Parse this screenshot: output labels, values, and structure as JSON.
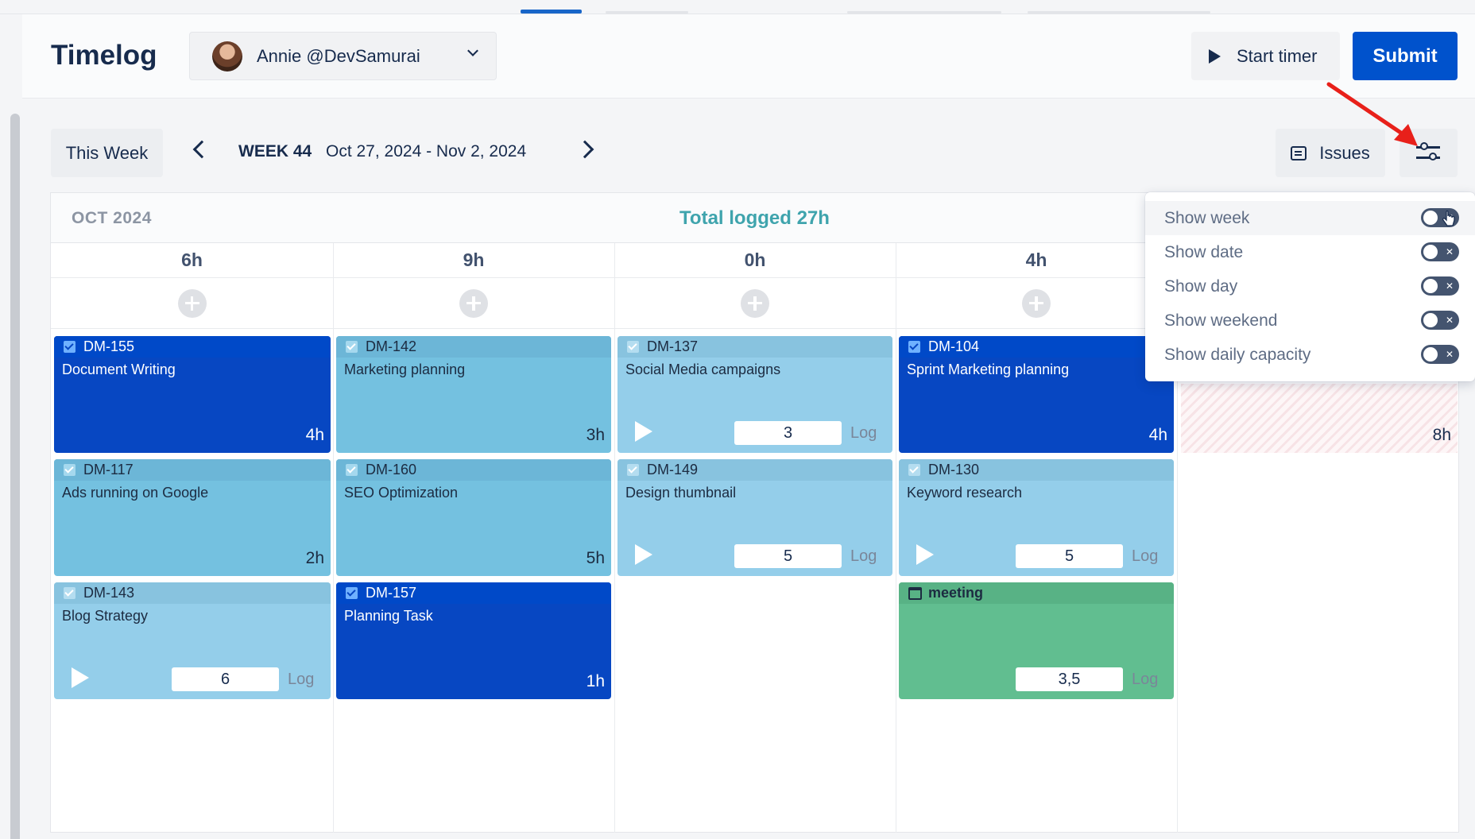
{
  "header": {
    "app_title": "Timelog",
    "user_name": "Annie @DevSamurai",
    "start_timer_label": "Start timer",
    "submit_label": "Submit"
  },
  "toolbar": {
    "this_week_label": "This Week",
    "week_label": "WEEK 44",
    "week_range": "Oct 27, 2024 - Nov 2, 2024",
    "issues_label": "Issues"
  },
  "grid": {
    "month_label": "OCT 2024",
    "total_logged": "Total logged 27h",
    "day_totals": [
      "6h",
      "9h",
      "0h",
      "4h"
    ]
  },
  "cards": {
    "c0": {
      "key": "DM-155",
      "title": "Document Writing",
      "hours": "4h"
    },
    "c1": {
      "key": "DM-117",
      "title": "Ads running on Google",
      "hours": "2h"
    },
    "c2": {
      "key": "DM-143",
      "title": "Blog Strategy",
      "log_value": "6",
      "log_label": "Log"
    },
    "c3": {
      "key": "DM-142",
      "title": "Marketing planning",
      "hours": "3h"
    },
    "c4": {
      "key": "DM-160",
      "title": "SEO Optimization",
      "hours": "5h"
    },
    "c5": {
      "key": "DM-157",
      "title": "Planning Task",
      "hours": "1h"
    },
    "c6": {
      "key": "DM-137",
      "title": "Social Media campaigns",
      "log_value": "3",
      "log_label": "Log"
    },
    "c7": {
      "key": "DM-149",
      "title": "Design thumbnail",
      "log_value": "5",
      "log_label": "Log"
    },
    "c8": {
      "key": "DM-104",
      "title": "Sprint Marketing planning",
      "hours": "4h"
    },
    "c9": {
      "key": "DM-130",
      "title": "Keyword research",
      "log_value": "5",
      "log_label": "Log"
    },
    "c10": {
      "key": "meeting",
      "log_value": "3,5",
      "log_label": "Log"
    }
  },
  "capacity_block": {
    "hours": "8h"
  },
  "settings_popup": {
    "options": [
      {
        "label": "Show week",
        "enabled": false
      },
      {
        "label": "Show date",
        "enabled": false
      },
      {
        "label": "Show day",
        "enabled": false
      },
      {
        "label": "Show weekend",
        "enabled": false
      },
      {
        "label": "Show daily capacity",
        "enabled": false
      }
    ]
  },
  "colors": {
    "primary": "#0052cc",
    "card_dark": "#0747c2",
    "card_light": "#74c1e0",
    "card_pale": "#94ceea",
    "meeting_green": "#61be90",
    "total_accent": "#3fa4ad",
    "annotation_arrow": "#e8201a"
  }
}
